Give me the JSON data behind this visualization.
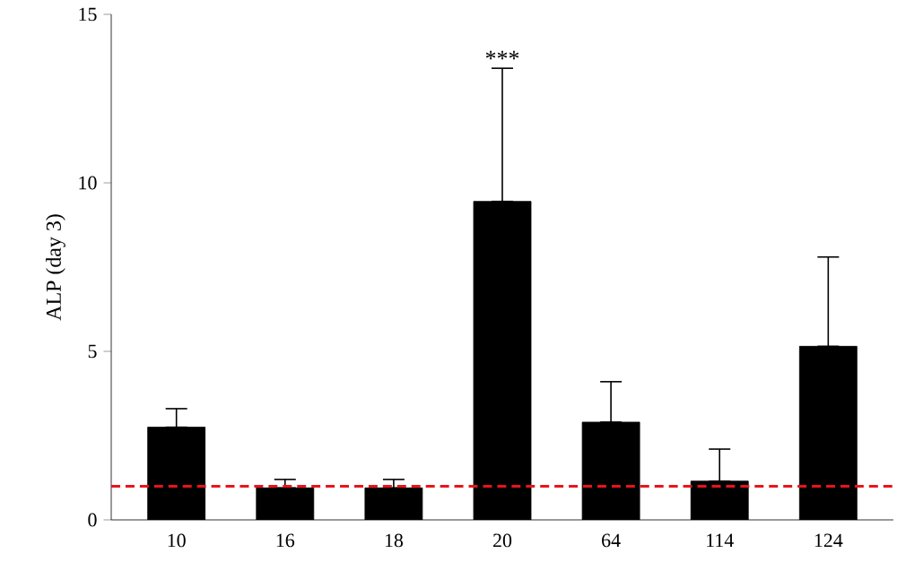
{
  "chart_data": {
    "type": "bar",
    "ylabel": "ALP (day 3)",
    "categories": [
      "10",
      "16",
      "18",
      "20",
      "64",
      "114",
      "124"
    ],
    "values": [
      2.75,
      0.95,
      0.95,
      9.45,
      2.9,
      1.15,
      5.15
    ],
    "errors": [
      [
        2.75,
        3.3
      ],
      [
        0.95,
        1.2
      ],
      [
        0.95,
        1.2
      ],
      [
        9.45,
        13.4
      ],
      [
        2.9,
        4.1
      ],
      [
        1.15,
        2.1
      ],
      [
        5.15,
        7.8
      ]
    ],
    "color": "#000000",
    "ylim": [
      0,
      15
    ],
    "yticks": [
      0,
      5,
      10,
      15
    ],
    "grid": false,
    "ref_lines": [
      {
        "axis": "y",
        "value": 1,
        "color": "#e8141a",
        "line_style": "dashed"
      }
    ],
    "annotations": [
      {
        "text": "***",
        "x": "20",
        "y": 13.4
      }
    ]
  }
}
